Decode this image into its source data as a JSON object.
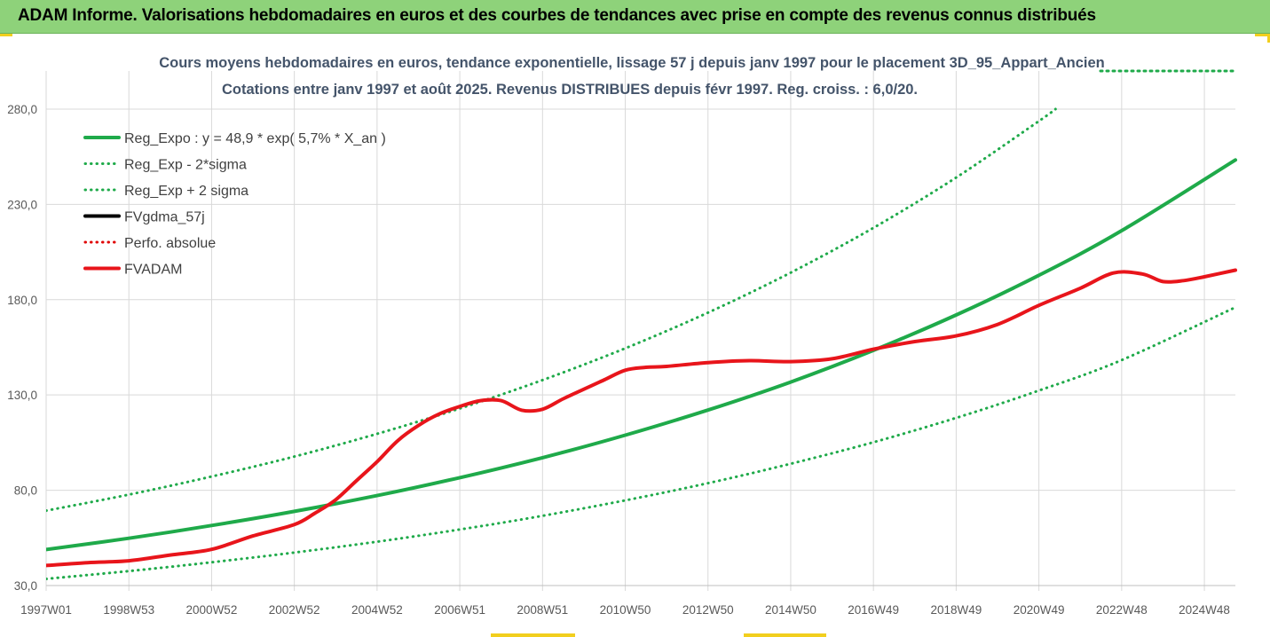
{
  "banner": {
    "text": "ADAM Informe. Valorisations hebdomadaires en euros et des courbes de tendances avec prise en compte des revenus connus distribués"
  },
  "chart_data": {
    "type": "line",
    "title": "Cours moyens hebdomadaires en euros, tendance exponentielle, lissage 57 j depuis janv 1997 pour le placement 3D_95_Appart_Ancien",
    "subtitle": "Cotations entre janv 1997 et août 2025. Revenus DISTRIBUES depuis févr 1997. Reg. croiss. : 6,0/20.",
    "xlabel": "",
    "ylabel": "",
    "ylim": [
      30,
      300
    ],
    "xlim": [
      1997.0,
      2025.75
    ],
    "grid": true,
    "legend_position": "top-left",
    "x_ticks": [
      {
        "label": "1997W01",
        "x": 1997.0
      },
      {
        "label": "1998W53",
        "x": 1999.0
      },
      {
        "label": "2000W52",
        "x": 2001.0
      },
      {
        "label": "2002W52",
        "x": 2003.0
      },
      {
        "label": "2004W52",
        "x": 2005.0
      },
      {
        "label": "2006W51",
        "x": 2007.0
      },
      {
        "label": "2008W51",
        "x": 2009.0
      },
      {
        "label": "2010W50",
        "x": 2011.0
      },
      {
        "label": "2012W50",
        "x": 2013.0
      },
      {
        "label": "2014W50",
        "x": 2015.0
      },
      {
        "label": "2016W49",
        "x": 2017.0
      },
      {
        "label": "2018W49",
        "x": 2019.0
      },
      {
        "label": "2020W49",
        "x": 2021.0
      },
      {
        "label": "2022W48",
        "x": 2023.0
      },
      {
        "label": "2024W48",
        "x": 2025.0
      }
    ],
    "y_ticks": [
      {
        "label": "30,0",
        "y": 30
      },
      {
        "label": "80,0",
        "y": 80
      },
      {
        "label": "130,0",
        "y": 130
      },
      {
        "label": "180,0",
        "y": 180
      },
      {
        "label": "230,0",
        "y": 230
      },
      {
        "label": "280,0",
        "y": 280
      }
    ],
    "series": [
      {
        "name": "Reg_Expo : y = 48,9 * exp( 5,7% *  X_an )",
        "color": "#1faa4a",
        "style": "solid",
        "x": [
          1997.0,
          1999.0,
          2001.0,
          2003.0,
          2005.0,
          2007.0,
          2009.0,
          2011.0,
          2013.0,
          2015.0,
          2017.0,
          2019.0,
          2021.0,
          2023.0,
          2025.75
        ],
        "y": [
          48.9,
          54.8,
          61.5,
          68.9,
          77.2,
          86.6,
          97.1,
          108.9,
          122.1,
          136.8,
          153.4,
          172.0,
          192.8,
          216.2,
          253.3
        ]
      },
      {
        "name": "Reg_Exp - 2*sigma",
        "color": "#1faa4a",
        "style": "dotted",
        "x": [
          1997.0,
          1999.0,
          2001.0,
          2003.0,
          2005.0,
          2007.0,
          2009.0,
          2011.0,
          2013.0,
          2015.0,
          2017.0,
          2019.0,
          2021.0,
          2023.0,
          2025.75
        ],
        "y": [
          33.5,
          37.6,
          42.2,
          47.3,
          53.0,
          59.4,
          66.6,
          74.7,
          83.7,
          93.9,
          105.2,
          118.0,
          132.3,
          148.3,
          176.0
        ]
      },
      {
        "name": "Reg_Exp + 2 sigma",
        "color": "#1faa4a",
        "style": "dotted",
        "x": [
          1997.0,
          1999.0,
          2001.0,
          2003.0,
          2005.0,
          2007.0,
          2009.0,
          2011.0,
          2013.0,
          2015.0,
          2017.0,
          2019.0,
          2021.0,
          2021.4
        ],
        "y": [
          69.3,
          77.7,
          87.2,
          97.7,
          109.6,
          122.9,
          137.8,
          154.5,
          173.2,
          194.2,
          217.7,
          244.1,
          273.7,
          280.0
        ]
      },
      {
        "name": "FVgdma_57j",
        "color": "#000000",
        "style": "solid",
        "x": [],
        "y": []
      },
      {
        "name": "Perfo. absolue",
        "color": "#e00000",
        "style": "dotted",
        "x": [],
        "y": []
      },
      {
        "name": "FVADAM",
        "color": "#e8151b",
        "style": "solid",
        "x": [
          1997.0,
          1998.0,
          1999.0,
          2000.0,
          2001.0,
          2002.0,
          2003.0,
          2003.5,
          2004.0,
          2004.5,
          2005.0,
          2005.5,
          2006.0,
          2006.5,
          2007.0,
          2007.5,
          2008.0,
          2008.5,
          2009.0,
          2009.5,
          2010.0,
          2010.5,
          2011.0,
          2011.5,
          2012.0,
          2013.0,
          2014.0,
          2015.0,
          2016.0,
          2017.0,
          2018.0,
          2019.0,
          2020.0,
          2021.0,
          2022.0,
          2022.8,
          2023.5,
          2024.0,
          2024.5,
          2025.0,
          2025.75
        ],
        "y": [
          40.5,
          42.0,
          43.0,
          46.0,
          49.0,
          56.0,
          62.0,
          68.0,
          75.0,
          85.0,
          95.0,
          106.0,
          114.0,
          120.0,
          124.0,
          127.0,
          127.0,
          122.0,
          122.5,
          128.0,
          133.0,
          138.0,
          143.0,
          144.5,
          145.0,
          147.0,
          148.0,
          147.5,
          149.0,
          154.0,
          158.0,
          161.0,
          167.0,
          177.0,
          186.0,
          194.0,
          193.5,
          189.5,
          190.0,
          192.0,
          195.5
        ]
      }
    ]
  }
}
